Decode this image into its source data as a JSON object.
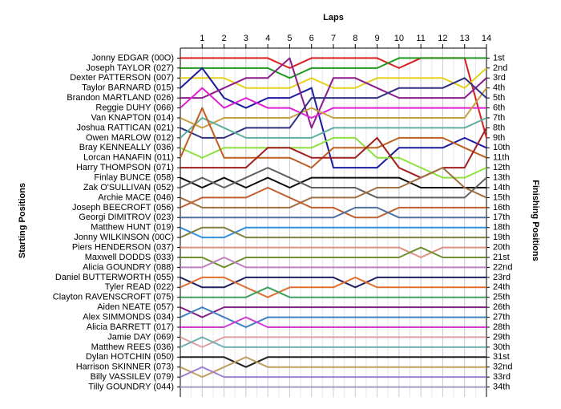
{
  "chart_data": {
    "type": "lap_chart",
    "title": "Laps",
    "y_label": "Starting Positions",
    "y2_label": "Finishing Positions",
    "x": [
      0,
      1,
      2,
      3,
      4,
      5,
      6,
      7,
      8,
      9,
      10,
      11,
      12,
      13,
      14
    ],
    "xlim": [
      0,
      14
    ],
    "xticks": [
      1,
      2,
      3,
      4,
      5,
      6,
      7,
      8,
      9,
      10,
      11,
      12,
      13,
      14
    ],
    "ylim": [
      0,
      35
    ],
    "y_inverted": true,
    "grid": true,
    "y2ticks": [
      {
        "value": 1,
        "label": "1st"
      },
      {
        "value": 2,
        "label": "2nd"
      },
      {
        "value": 3,
        "label": "3rd"
      },
      {
        "value": 4,
        "label": "4th"
      },
      {
        "value": 5,
        "label": "5th"
      },
      {
        "value": 6,
        "label": "6th"
      },
      {
        "value": 7,
        "label": "7th"
      },
      {
        "value": 8,
        "label": "8th"
      },
      {
        "value": 9,
        "label": "9th"
      },
      {
        "value": 10,
        "label": "10th"
      },
      {
        "value": 11,
        "label": "11th"
      },
      {
        "value": 12,
        "label": "12th"
      },
      {
        "value": 13,
        "label": "13th"
      },
      {
        "value": 14,
        "label": "14th"
      },
      {
        "value": 15,
        "label": "15th"
      },
      {
        "value": 16,
        "label": "16th"
      },
      {
        "value": 17,
        "label": "17th"
      },
      {
        "value": 18,
        "label": "18th"
      },
      {
        "value": 19,
        "label": "19th"
      },
      {
        "value": 20,
        "label": "20th"
      },
      {
        "value": 21,
        "label": "21st"
      },
      {
        "value": 22,
        "label": "22nd"
      },
      {
        "value": 23,
        "label": "23rd"
      },
      {
        "value": 24,
        "label": "24th"
      },
      {
        "value": 25,
        "label": "25th"
      },
      {
        "value": 26,
        "label": "26th"
      },
      {
        "value": 27,
        "label": "27th"
      },
      {
        "value": 28,
        "label": "28th"
      },
      {
        "value": 29,
        "label": "29th"
      },
      {
        "value": 30,
        "label": "30th"
      },
      {
        "value": 31,
        "label": "31st"
      },
      {
        "value": 32,
        "label": "32nd"
      },
      {
        "value": 33,
        "label": "33rd"
      },
      {
        "value": 34,
        "label": "34th"
      }
    ],
    "series": [
      {
        "name": "Jonny EDGAR (00O)",
        "color": "#d82020",
        "values": [
          1,
          1,
          1,
          1,
          1,
          2,
          1,
          1,
          1,
          1,
          2,
          1,
          1,
          1,
          9
        ]
      },
      {
        "name": "Joseph TAYLOR (027)",
        "color": "#209a20",
        "values": [
          2,
          2,
          2,
          2,
          2,
          3,
          2,
          2,
          2,
          2,
          1,
          1,
          1,
          1,
          1
        ]
      },
      {
        "name": "Dexter PATTERSON (007)",
        "color": "#e6d21e",
        "values": [
          3,
          3,
          3,
          4,
          4,
          4,
          3,
          4,
          4,
          3,
          3,
          3,
          3,
          4,
          2
        ]
      },
      {
        "name": "Taylor BARNARD (015)",
        "color": "#1c1ca0",
        "values": [
          4,
          2,
          5,
          6,
          5,
          5,
          4,
          12,
          12,
          12,
          10,
          10,
          10,
          9,
          10
        ]
      },
      {
        "name": "Brandon MARTLAND (026)",
        "color": "#8c1c8c",
        "values": [
          5,
          5,
          4,
          3,
          3,
          1,
          8,
          3,
          3,
          4,
          5,
          5,
          5,
          5,
          3
        ]
      },
      {
        "name": "Reggie DUHY (066)",
        "color": "#e020d0",
        "values": [
          6,
          4,
          6,
          5,
          6,
          6,
          7,
          6,
          6,
          6,
          6,
          6,
          6,
          6,
          6
        ]
      },
      {
        "name": "Van KNAPTON (014)",
        "color": "#c8a040",
        "values": [
          7,
          8,
          7,
          7,
          7,
          7,
          6,
          7,
          7,
          7,
          7,
          7,
          7,
          7,
          4
        ]
      },
      {
        "name": "Joshua RATTICAN (021)",
        "color": "#303080",
        "values": [
          8,
          9,
          9,
          8,
          8,
          8,
          5,
          5,
          5,
          5,
          4,
          4,
          4,
          3,
          5
        ]
      },
      {
        "name": "Owen MARLOW (012)",
        "color": "#60b0a0",
        "values": [
          9,
          7,
          8,
          9,
          9,
          9,
          9,
          8,
          8,
          8,
          8,
          8,
          8,
          8,
          7
        ]
      },
      {
        "name": "Bray KENNEALLY (036)",
        "color": "#90e040",
        "values": [
          10,
          11,
          10,
          10,
          10,
          10,
          10,
          9,
          9,
          11,
          11,
          12,
          13,
          13,
          12
        ]
      },
      {
        "name": "Lorcan HANAFIN (011)",
        "color": "#c06020",
        "values": [
          11,
          6,
          11,
          11,
          11,
          11,
          12,
          10,
          10,
          10,
          9,
          9,
          9,
          10,
          11
        ]
      },
      {
        "name": "Harry THOMPSON (071)",
        "color": "#a02020",
        "values": [
          12,
          12,
          12,
          12,
          10,
          10,
          11,
          11,
          11,
          9,
          12,
          13,
          12,
          12,
          8
        ]
      },
      {
        "name": "Finlay BUNCE (058)",
        "color": "#101010",
        "values": [
          13,
          14,
          13,
          14,
          13,
          14,
          13,
          13,
          13,
          13,
          13,
          14,
          14,
          14,
          14
        ]
      },
      {
        "name": "Zak O'SULLIVAN (052)",
        "color": "#606060",
        "values": [
          14,
          13,
          14,
          13,
          12,
          13,
          14,
          14,
          14,
          15,
          15,
          15,
          15,
          15,
          13
        ]
      },
      {
        "name": "Archie MACE (046)",
        "color": "#a07040",
        "values": [
          15,
          16,
          16,
          16,
          16,
          16,
          15,
          15,
          15,
          14,
          14,
          13,
          12,
          14,
          15
        ]
      },
      {
        "name": "Joseph BEECROFT (056)",
        "color": "#c06030",
        "values": [
          16,
          15,
          15,
          15,
          14,
          15,
          16,
          16,
          17,
          17,
          16,
          16,
          16,
          16,
          16
        ]
      },
      {
        "name": "Georgi DIMITROV (023)",
        "color": "#5070a0",
        "values": [
          17,
          17,
          17,
          17,
          17,
          17,
          17,
          17,
          16,
          16,
          17,
          17,
          17,
          17,
          17
        ]
      },
      {
        "name": "Matthew HUNT (019)",
        "color": "#3090e0",
        "values": [
          18,
          19,
          19,
          18,
          18,
          18,
          18,
          18,
          18,
          18,
          18,
          18,
          18,
          18,
          18
        ]
      },
      {
        "name": "Jonny WILKINSON (00C)",
        "color": "#808040",
        "values": [
          19,
          18,
          18,
          19,
          19,
          19,
          19,
          19,
          19,
          19,
          19,
          19,
          19,
          19,
          19
        ]
      },
      {
        "name": "Piers HENDERSON (037)",
        "color": "#e09080",
        "values": [
          20,
          20,
          20,
          20,
          20,
          20,
          20,
          20,
          20,
          20,
          20,
          21,
          20,
          20,
          20
        ]
      },
      {
        "name": "Maxwell DODDS (033)",
        "color": "#709030",
        "values": [
          21,
          21,
          22,
          21,
          21,
          21,
          21,
          21,
          21,
          21,
          21,
          20,
          21,
          21,
          21
        ]
      },
      {
        "name": "Alicia GOUNDRY (088)",
        "color": "#c080c0",
        "values": [
          22,
          22,
          21,
          22,
          22,
          22,
          22,
          22,
          22,
          22,
          22,
          22,
          22,
          22,
          22
        ]
      },
      {
        "name": "Daniel BUTTERWORTH (055)",
        "color": "#202060",
        "values": [
          23,
          24,
          24,
          23,
          23,
          23,
          23,
          23,
          24,
          23,
          23,
          23,
          23,
          23,
          23
        ]
      },
      {
        "name": "Tyler READ (022)",
        "color": "#e07030",
        "values": [
          24,
          23,
          23,
          24,
          25,
          24,
          24,
          24,
          23,
          24,
          24,
          24,
          24,
          24,
          24
        ]
      },
      {
        "name": "Clayton RAVENSCROFT (075)",
        "color": "#40a060",
        "values": [
          25,
          25,
          25,
          25,
          24,
          25,
          25,
          25,
          25,
          25,
          25,
          25,
          25,
          25,
          25
        ]
      },
      {
        "name": "Aiden NEATE (057)",
        "color": "#802080",
        "values": [
          26,
          27,
          26,
          26,
          26,
          26,
          26,
          26,
          26,
          26,
          26,
          26,
          26,
          26,
          26
        ]
      },
      {
        "name": "Alex SIMMONDS (034)",
        "color": "#4080c0",
        "values": [
          27,
          26,
          27,
          28,
          27,
          27,
          27,
          27,
          27,
          27,
          27,
          27,
          27,
          27,
          27
        ]
      },
      {
        "name": "Alicia BARRETT (017)",
        "color": "#d040d0",
        "values": [
          28,
          28,
          28,
          27,
          28,
          28,
          28,
          28,
          28,
          28,
          28,
          28,
          28,
          28,
          28
        ]
      },
      {
        "name": "Jamie DAY (069)",
        "color": "#e0a0a0",
        "values": [
          29,
          30,
          29,
          29,
          29,
          29,
          29,
          29,
          29,
          29,
          29,
          29,
          29,
          29,
          29
        ]
      },
      {
        "name": "Matthew REES (036)",
        "color": "#70b0b0",
        "values": [
          30,
          29,
          30,
          30,
          30,
          30,
          30,
          30,
          30,
          30,
          30,
          30,
          30,
          30,
          30
        ]
      },
      {
        "name": "Dylan HOTCHIN (050)",
        "color": "#202020",
        "values": [
          31,
          31,
          31,
          32,
          31,
          31,
          31,
          31,
          31,
          31,
          31,
          31,
          31,
          31,
          31
        ]
      },
      {
        "name": "Harrison SKINNER (073)",
        "color": "#c0a060",
        "values": [
          32,
          33,
          32,
          31,
          32,
          32,
          32,
          32,
          32,
          32,
          32,
          32,
          32,
          32,
          32
        ]
      },
      {
        "name": "Billy VASSILEV (079)",
        "color": "#a080d0",
        "values": [
          33,
          32,
          33,
          33,
          33,
          33,
          33,
          33,
          33,
          33,
          33,
          33,
          33,
          33,
          33
        ]
      },
      {
        "name": "Tilly GOUNDRY (044)",
        "color": "#a0a0c0",
        "values": [
          34,
          34,
          34,
          34,
          34,
          34,
          34,
          34,
          34,
          34,
          34,
          34,
          34,
          34,
          34
        ]
      }
    ]
  }
}
